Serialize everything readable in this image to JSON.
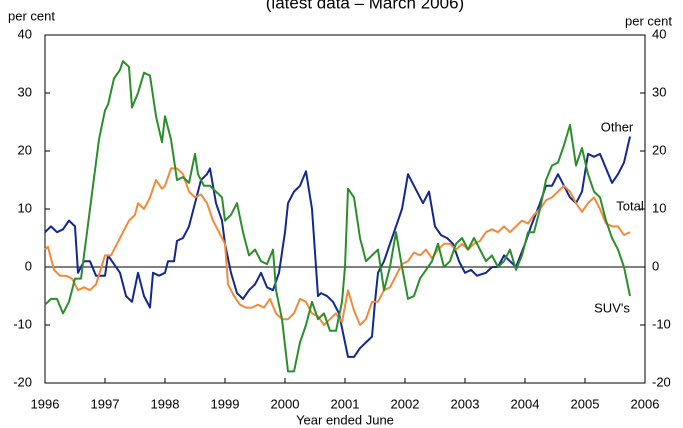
{
  "chart_data": {
    "type": "line",
    "subtitle": "(latest data – March 2006)",
    "y_label": "per cent",
    "y2_label": "per cent",
    "x_label": "Year ended June",
    "xlim": [
      1996,
      2006
    ],
    "xticks": [
      1996,
      1997,
      1998,
      1999,
      2000,
      2001,
      2002,
      2003,
      2004,
      2005,
      2006
    ],
    "ylim": [
      -20,
      40
    ],
    "yticks": [
      -20,
      -10,
      0,
      10,
      20,
      30,
      40
    ],
    "y2lim": [
      -20,
      40
    ],
    "y2ticks": [
      -20,
      -10,
      0,
      10,
      20,
      30,
      40
    ],
    "series": [
      {
        "name": "Other",
        "color": "#14288c",
        "x": [
          1996,
          1996.1,
          1996.2,
          1996.3,
          1996.4,
          1996.5,
          1996.55,
          1996.65,
          1996.75,
          1996.85,
          1997.0,
          1997.05,
          1997.25,
          1997.35,
          1997.45,
          1997.55,
          1997.65,
          1997.75,
          1997.8,
          1997.9,
          1998.0,
          1998.05,
          1998.15,
          1998.2,
          1998.3,
          1998.4,
          1998.5,
          1998.6,
          1998.7,
          1998.75,
          1998.85,
          1998.95,
          1999.0,
          1999.1,
          1999.2,
          1999.3,
          1999.4,
          1999.5,
          1999.6,
          1999.7,
          1999.8,
          1999.9,
          2000.0,
          2000.05,
          2000.15,
          2000.25,
          2000.35,
          2000.45,
          2000.55,
          2000.6,
          2000.7,
          2000.8,
          2000.9,
          2001.0,
          2001.05,
          2001.15,
          2001.25,
          2001.35,
          2001.45,
          2001.5,
          2001.55,
          2001.65,
          2001.75,
          2001.85,
          2001.95,
          2002.05,
          2002.15,
          2002.25,
          2002.3,
          2002.4,
          2002.5,
          2002.6,
          2002.7,
          2002.8,
          2002.9,
          2003.0,
          2003.1,
          2003.2,
          2003.35,
          2003.45,
          2003.55,
          2003.65,
          2003.75,
          2003.85,
          2004.0,
          2004.1,
          2004.25,
          2004.35,
          2004.45,
          2004.55,
          2004.65,
          2004.75,
          2004.85,
          2004.95,
          2005.05,
          2005.15,
          2005.25,
          2005.35,
          2005.45,
          2005.55,
          2005.65,
          2005.75
        ],
        "values": [
          6,
          7,
          6,
          6.5,
          8,
          7,
          -1,
          1,
          1,
          -1.5,
          -1.5,
          2,
          -1,
          -5,
          -6,
          -1,
          -5,
          -7,
          -1,
          -1.5,
          -1,
          1,
          1,
          4.5,
          5,
          7,
          11,
          15,
          16,
          17,
          11,
          8,
          4,
          -1,
          -4.5,
          -5.5,
          -4,
          -3,
          -1,
          -3.5,
          -4,
          -1,
          6,
          11,
          13,
          14,
          16.5,
          10,
          -5,
          -4.5,
          -5,
          -6,
          -8,
          -13,
          -15.5,
          -15.5,
          -14,
          -13,
          -12,
          -6,
          -1,
          1,
          4,
          7,
          10,
          16,
          14,
          12,
          11,
          13,
          7,
          5.5,
          5,
          4,
          1,
          -1,
          -0.5,
          -1.5,
          -1,
          0,
          0,
          2,
          1,
          0,
          4,
          7,
          11,
          14,
          14,
          16,
          14,
          12,
          11,
          13,
          19.5,
          19,
          19.5,
          17,
          14.5,
          16,
          18,
          22.5
        ]
      },
      {
        "name": "Total",
        "color": "#f28a3c",
        "x": [
          1996,
          1996.05,
          1996.15,
          1996.25,
          1996.35,
          1996.45,
          1996.55,
          1996.65,
          1996.75,
          1996.85,
          1997.0,
          1997.1,
          1997.2,
          1997.3,
          1997.4,
          1997.5,
          1997.55,
          1997.65,
          1997.75,
          1997.85,
          1997.95,
          1998.0,
          1998.1,
          1998.2,
          1998.3,
          1998.4,
          1998.5,
          1998.6,
          1998.7,
          1998.8,
          1998.9,
          1999.0,
          1999.05,
          1999.15,
          1999.25,
          1999.35,
          1999.45,
          1999.55,
          1999.65,
          1999.75,
          1999.85,
          1999.95,
          2000.05,
          2000.15,
          2000.25,
          2000.35,
          2000.45,
          2000.55,
          2000.65,
          2000.75,
          2000.85,
          2000.95,
          2001.05,
          2001.15,
          2001.25,
          2001.35,
          2001.45,
          2001.55,
          2001.65,
          2001.75,
          2001.85,
          2001.95,
          2002.05,
          2002.15,
          2002.25,
          2002.35,
          2002.45,
          2002.55,
          2002.65,
          2002.75,
          2002.85,
          2002.95,
          2003.05,
          2003.15,
          2003.25,
          2003.35,
          2003.45,
          2003.55,
          2003.65,
          2003.75,
          2003.85,
          2003.95,
          2004.05,
          2004.15,
          2004.25,
          2004.35,
          2004.45,
          2004.55,
          2004.65,
          2004.75,
          2004.85,
          2004.95,
          2005.05,
          2005.15,
          2005.25,
          2005.35,
          2005.45,
          2005.55,
          2005.65,
          2005.75
        ],
        "values": [
          3,
          3.5,
          -0.5,
          -1.5,
          -1.5,
          -2,
          -4,
          -3.5,
          -4,
          -3,
          2,
          2,
          4,
          6,
          8,
          9,
          11,
          10,
          12,
          15,
          13.5,
          14,
          17,
          17,
          16,
          13,
          12,
          12.5,
          11,
          8,
          6,
          4,
          -3,
          -5,
          -6.5,
          -7,
          -7,
          -6.5,
          -7,
          -5.5,
          -8,
          -9,
          -9,
          -8,
          -5.5,
          -6,
          -8,
          -8.5,
          -10,
          -9,
          -8,
          -9.5,
          -4,
          -7.5,
          -10,
          -9,
          -6,
          -6,
          -4,
          -3.5,
          -1.5,
          0.5,
          1,
          2.5,
          2,
          3,
          1.5,
          3,
          4,
          4,
          3,
          4,
          3,
          4,
          4.5,
          6,
          6.5,
          6,
          7,
          6,
          7,
          8,
          7.5,
          9,
          10,
          11.5,
          12,
          13,
          14,
          13,
          11,
          9.5,
          11,
          12,
          10,
          7.5,
          7,
          7,
          5.5,
          6
        ]
      },
      {
        "name": "SUV's",
        "color": "#2a8f2a",
        "x": [
          1996,
          1996.1,
          1996.2,
          1996.3,
          1996.4,
          1996.5,
          1996.6,
          1996.7,
          1996.8,
          1996.9,
          1997.0,
          1997.05,
          1997.15,
          1997.25,
          1997.3,
          1997.4,
          1997.45,
          1997.55,
          1997.65,
          1997.75,
          1997.85,
          1997.95,
          1998.0,
          1998.1,
          1998.2,
          1998.3,
          1998.4,
          1998.5,
          1998.55,
          1998.65,
          1998.75,
          1998.85,
          1998.95,
          1999.0,
          1999.1,
          1999.2,
          1999.3,
          1999.4,
          1999.5,
          1999.6,
          1999.7,
          1999.8,
          1999.85,
          1999.95,
          2000.05,
          2000.15,
          2000.25,
          2000.35,
          2000.45,
          2000.55,
          2000.65,
          2000.75,
          2000.85,
          2000.95,
          2001.0,
          2001.05,
          2001.15,
          2001.25,
          2001.35,
          2001.45,
          2001.55,
          2001.65,
          2001.75,
          2001.85,
          2001.95,
          2002.05,
          2002.15,
          2002.25,
          2002.35,
          2002.45,
          2002.55,
          2002.65,
          2002.75,
          2002.85,
          2002.95,
          2003.05,
          2003.15,
          2003.25,
          2003.35,
          2003.45,
          2003.55,
          2003.65,
          2003.75,
          2003.85,
          2003.95,
          2004.05,
          2004.15,
          2004.25,
          2004.35,
          2004.45,
          2004.55,
          2004.65,
          2004.75,
          2004.85,
          2004.95,
          2005.05,
          2005.15,
          2005.25,
          2005.35,
          2005.45,
          2005.55,
          2005.65,
          2005.75
        ],
        "values": [
          -6.5,
          -5.5,
          -5.5,
          -8,
          -6,
          -2,
          -2,
          6,
          14,
          22,
          27,
          28,
          32.5,
          34,
          35.5,
          34.5,
          27.5,
          30,
          33.5,
          33,
          26,
          21.5,
          26,
          22,
          15,
          15.5,
          14.5,
          19.5,
          16,
          14,
          14,
          13,
          12,
          8,
          9,
          11,
          6,
          2,
          3,
          1,
          0.5,
          3,
          -4,
          -9,
          -18,
          -18,
          -13,
          -10,
          -6,
          -9,
          -8,
          -11,
          -11,
          -6,
          0,
          13.5,
          12,
          5,
          1,
          2,
          3,
          -4,
          0,
          6,
          0,
          -5.5,
          -5,
          -2,
          -0.5,
          1,
          4,
          0,
          1,
          4,
          5,
          3,
          5,
          3,
          1,
          2,
          0,
          1,
          3,
          -0.5,
          2,
          6,
          6,
          10,
          15,
          17.5,
          18,
          21,
          24.5,
          17.5,
          20.5,
          16,
          13,
          12,
          8,
          5,
          3,
          0,
          -5
        ]
      }
    ]
  }
}
